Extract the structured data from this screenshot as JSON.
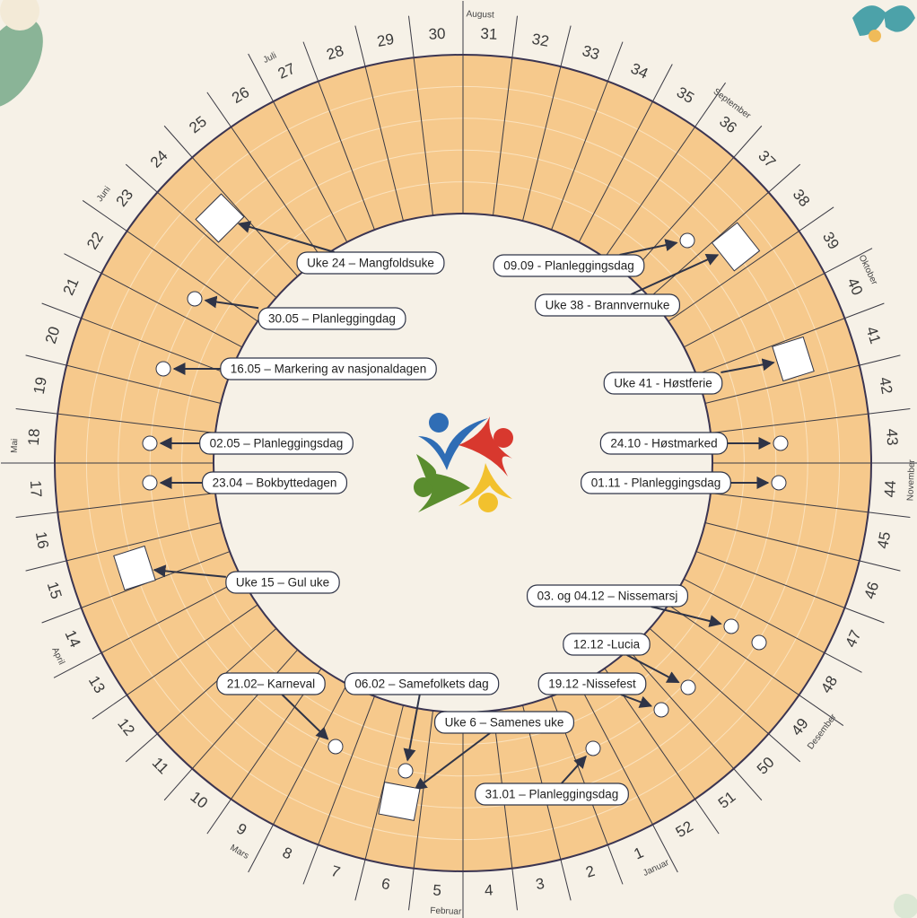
{
  "weeks": [
    1,
    2,
    3,
    4,
    5,
    6,
    7,
    8,
    9,
    10,
    11,
    12,
    13,
    14,
    15,
    16,
    17,
    18,
    19,
    20,
    21,
    22,
    23,
    24,
    25,
    26,
    27,
    28,
    29,
    30,
    31,
    32,
    33,
    34,
    35,
    36,
    37,
    38,
    39,
    40,
    41,
    42,
    43,
    44,
    45,
    46,
    47,
    48,
    49,
    50,
    51,
    52
  ],
  "months": [
    "Januar",
    "Februar",
    "Mars",
    "April",
    "Mai",
    "Juni",
    "Juli",
    "August",
    "September",
    "Oktober",
    "November",
    "Desember"
  ],
  "events": [
    {
      "label": "Uke 24 – Mangfoldsuke"
    },
    {
      "label": "30.05 – Planleggingdag"
    },
    {
      "label": "16.05 – Markering av nasjonaldagen"
    },
    {
      "label": "02.05 – Planleggingsdag"
    },
    {
      "label": "23.04 – Bokbyttedagen"
    },
    {
      "label": "Uke 15 – Gul uke"
    },
    {
      "label": "21.02– Karneval"
    },
    {
      "label": "06.02 – Samefolkets dag"
    },
    {
      "label": "Uke 6 – Samenes uke"
    },
    {
      "label": "31.01 – Planleggingsdag"
    },
    {
      "label": "19.12 -Nissefest"
    },
    {
      "label": "12.12 -Lucia"
    },
    {
      "label": "03. og 04.12 – Nissemarsj"
    },
    {
      "label": "01.11 - Planleggingsdag"
    },
    {
      "label": "24.10 - Høstmarked"
    },
    {
      "label": "Uke 41 - Høstferie"
    },
    {
      "label": "Uke 38 - Brannvernuke"
    },
    {
      "label": "09.09 - Planleggingsdag"
    }
  ]
}
